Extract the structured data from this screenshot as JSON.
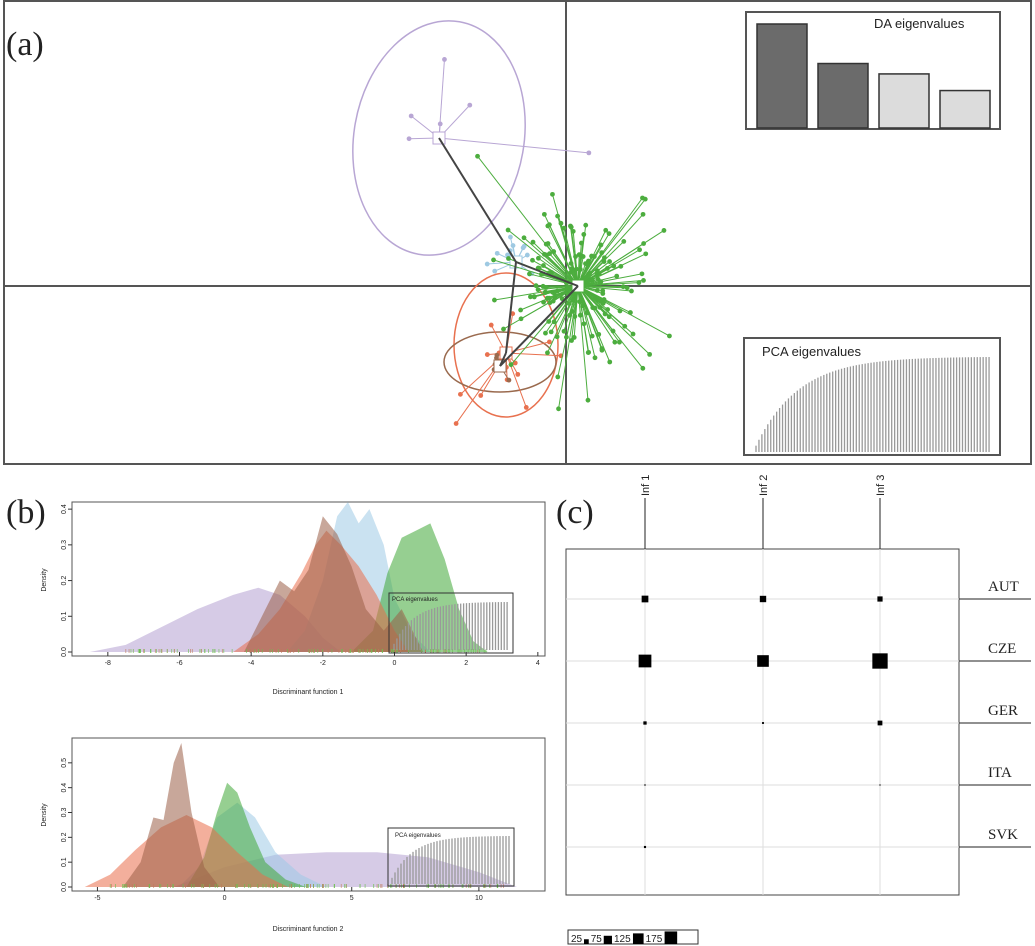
{
  "panels": {
    "a": "(a)",
    "b": "(b)",
    "c": "(c)"
  },
  "chart_data": [
    {
      "type": "scatter",
      "panel": "a",
      "groups": [
        {
          "color": "#b8a6d4",
          "n": 6,
          "spread": 1.0
        },
        {
          "color": "#9ec9e2",
          "n": 12,
          "spread": 0.6
        },
        {
          "color": "#e8714f",
          "n": 15,
          "spread": 0.8
        },
        {
          "color": "#9a6a4e",
          "n": 8,
          "spread": 0.4
        },
        {
          "color": "#4cad3e",
          "n": 180,
          "spread": 0.9
        }
      ],
      "insets": [
        {
          "title": "DA eigenvalues",
          "values": [
            1.0,
            0.62,
            0.52,
            0.36
          ],
          "colors": [
            "#6b6b6b",
            "#6b6b6b",
            "#dcdcdc",
            "#dcdcdc"
          ]
        },
        {
          "title": "PCA eigenvalues"
        }
      ]
    },
    {
      "type": "area",
      "panel": "b1",
      "xlabel": "Discriminant function 1",
      "ylabel": "Density",
      "xlim": [
        -9,
        4.2
      ],
      "ylim": [
        0,
        0.42
      ],
      "x_ticks": [
        -8,
        -6,
        -4,
        -2,
        0,
        2,
        4
      ],
      "y_ticks": [
        0.0,
        0.1,
        0.2,
        0.3,
        0.4
      ],
      "inset_title": "PCA eigenvalues",
      "series": [
        {
          "color": "#b5a1d1",
          "x": [
            -8.5,
            -7.5,
            -6.5,
            -5.5,
            -4.5,
            -3.8,
            -3.2,
            -2.5,
            -2.0,
            -1.5
          ],
          "y": [
            0,
            0.02,
            0.07,
            0.12,
            0.16,
            0.18,
            0.16,
            0.1,
            0.04,
            0
          ]
        },
        {
          "color": "#9fcbe5",
          "x": [
            -3.0,
            -2.5,
            -2.0,
            -1.6,
            -1.3,
            -1.0,
            -0.7,
            -0.3,
            0.0,
            0.5,
            1.0
          ],
          "y": [
            0,
            0.06,
            0.2,
            0.38,
            0.42,
            0.36,
            0.4,
            0.3,
            0.15,
            0.05,
            0
          ]
        },
        {
          "color": "#3fa836",
          "x": [
            -1.2,
            -0.6,
            -0.2,
            0.2,
            0.6,
            1.0,
            1.4,
            1.8,
            2.2,
            2.6
          ],
          "y": [
            0,
            0.06,
            0.22,
            0.32,
            0.34,
            0.36,
            0.26,
            0.12,
            0.03,
            0
          ]
        },
        {
          "color": "#e96d4a",
          "x": [
            -4.5,
            -3.8,
            -3.2,
            -2.6,
            -2.2,
            -1.9,
            -1.5,
            -1.0,
            -0.5,
            0.0,
            0.4
          ],
          "y": [
            0,
            0.05,
            0.12,
            0.22,
            0.3,
            0.34,
            0.3,
            0.24,
            0.16,
            0.06,
            0
          ]
        },
        {
          "color": "#9a5f47",
          "x": [
            -4.2,
            -3.6,
            -3.2,
            -2.8,
            -2.4,
            -2.0,
            -1.6,
            -1.2,
            -0.8,
            -0.3,
            0.2,
            0.8
          ],
          "y": [
            0,
            0.12,
            0.2,
            0.17,
            0.23,
            0.38,
            0.33,
            0.24,
            0.12,
            0.06,
            0.12,
            0
          ]
        }
      ]
    },
    {
      "type": "area",
      "panel": "b2",
      "xlabel": "Discriminant function 2",
      "ylabel": "Density",
      "xlim": [
        -6,
        12.6
      ],
      "ylim": [
        0,
        0.6
      ],
      "x_ticks": [
        -5,
        0,
        5,
        10
      ],
      "y_ticks": [
        0.0,
        0.1,
        0.2,
        0.3,
        0.4,
        0.5
      ],
      "inset_title": "PCA eigenvalues",
      "series": [
        {
          "color": "#b5a1d1",
          "x": [
            -2.0,
            0,
            2.0,
            4.0,
            6.0,
            8.0,
            10.0,
            11.5
          ],
          "y": [
            0,
            0.08,
            0.13,
            0.14,
            0.14,
            0.12,
            0.06,
            0
          ]
        },
        {
          "color": "#9fcbe5",
          "x": [
            -1.8,
            -1.0,
            -0.3,
            0.5,
            1.2,
            2.0,
            3.0,
            4.0
          ],
          "y": [
            0,
            0.08,
            0.28,
            0.34,
            0.28,
            0.14,
            0.05,
            0
          ]
        },
        {
          "color": "#3fa836",
          "x": [
            -1.5,
            -0.8,
            -0.3,
            0.1,
            0.5,
            1.0,
            1.6,
            2.4,
            3.2
          ],
          "y": [
            0,
            0.12,
            0.3,
            0.42,
            0.38,
            0.24,
            0.1,
            0.03,
            0
          ]
        },
        {
          "color": "#e96d4a",
          "x": [
            -5.5,
            -4.5,
            -3.5,
            -2.5,
            -1.5,
            -0.5,
            0.5,
            1.5,
            2.5
          ],
          "y": [
            0,
            0.05,
            0.15,
            0.24,
            0.29,
            0.24,
            0.14,
            0.05,
            0
          ]
        },
        {
          "color": "#9a5f47",
          "x": [
            -4.0,
            -3.3,
            -2.8,
            -2.4,
            -2.0,
            -1.7,
            -1.3,
            -0.8,
            -0.2
          ],
          "y": [
            0,
            0.1,
            0.28,
            0.27,
            0.5,
            0.58,
            0.3,
            0.08,
            0
          ]
        }
      ]
    },
    {
      "type": "heatmap",
      "panel": "c",
      "columns": [
        "Inf 1",
        "Inf 2",
        "Inf 3"
      ],
      "rows": [
        "AUT",
        "CZE",
        "GER",
        "ITA",
        "SVK"
      ],
      "values": [
        [
          50,
          45,
          30
        ],
        [
          180,
          150,
          260
        ],
        [
          12,
          4,
          25
        ],
        [
          2,
          0,
          1
        ],
        [
          5,
          0,
          0
        ]
      ],
      "legend": [
        25,
        75,
        125,
        175
      ]
    }
  ]
}
